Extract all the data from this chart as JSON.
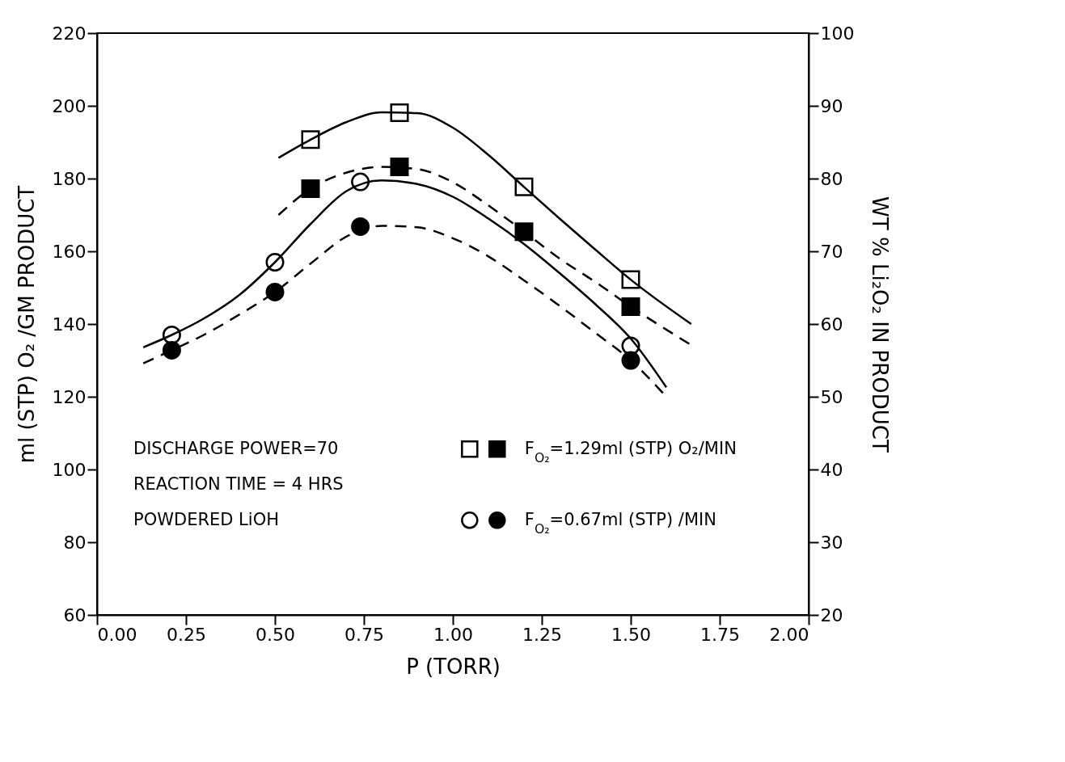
{
  "chart_data": {
    "type": "scatter",
    "xlabel": "P (TORR)",
    "ylabel": "ml (STP) O₂ /GM PRODUCT",
    "y2label": "WT % Li₂O₂ IN PRODUCT",
    "xlim": [
      0,
      2
    ],
    "xticks": [
      {
        "value": 0,
        "label": "0.00"
      },
      {
        "value": 0.25,
        "label": "0.25"
      },
      {
        "value": 0.5,
        "label": "0.50"
      },
      {
        "value": 0.75,
        "label": "0.75"
      },
      {
        "value": 1,
        "label": "1.00"
      },
      {
        "value": 1.25,
        "label": "1.25"
      },
      {
        "value": 1.5,
        "label": "1.50"
      },
      {
        "value": 1.75,
        "label": "1.75"
      },
      {
        "value": 2,
        "label": "2.00"
      }
    ],
    "ylim": [
      60,
      220
    ],
    "yticks": [
      60,
      80,
      100,
      120,
      140,
      160,
      180,
      200,
      220
    ],
    "y2lim": [
      20,
      100
    ],
    "y2ticks": [
      20,
      30,
      40,
      50,
      60,
      70,
      80,
      90,
      100
    ],
    "grid": false,
    "legend": "bottom right",
    "annotations": [
      "DISCHARGE POWER=70",
      "REACTION TIME = 4 HRS",
      "POWDERED LiOH"
    ],
    "series": [
      {
        "marker": "square",
        "color": "#000000",
        "x": [
          0.6,
          0.85,
          1.2,
          1.5
        ],
        "values": [
          190.7,
          198.1,
          177.7,
          152.2
        ]
      },
      {
        "name": "F$_{O₂}$=1.29ml (STP) O₂/MIN",
        "marker": "square",
        "color": "#000000",
        "axis": "y2",
        "x": [
          0.6,
          0.85,
          1.2,
          1.5
        ],
        "values": [
          78.6,
          81.6,
          72.7,
          62.4
        ]
      },
      {
        "marker": "circle",
        "color": "#000000",
        "x": [
          0.21,
          0.5,
          0.74,
          1.5
        ],
        "values": [
          137,
          157,
          179.1,
          134
        ]
      },
      {
        "name": "F$_{O₂}$=0.67ml (STP) /MIN",
        "marker": "circle",
        "color": "#000000",
        "axis": "y2",
        "x": [
          0.21,
          0.5,
          0.74,
          1.5
        ],
        "values": [
          56.4,
          64.4,
          73.4,
          55
        ]
      },
      {
        "type": "line",
        "marker": "none",
        "line_style": "solid",
        "color": "#000000",
        "x": [
          0.51,
          0.6,
          0.7,
          0.8,
          0.9,
          1.0,
          1.1,
          1.2,
          1.3,
          1.4,
          1.5,
          1.67
        ],
        "values": [
          185.7,
          190.7,
          195.5,
          198.2,
          198,
          194,
          186.5,
          177.7,
          169,
          160.5,
          152.2,
          140
        ]
      },
      {
        "type": "line",
        "marker": "none",
        "line_style": "dashed",
        "color": "#000000",
        "axis": "y2",
        "x": [
          0.51,
          0.6,
          0.7,
          0.8,
          0.9,
          1.0,
          1.1,
          1.2,
          1.3,
          1.4,
          1.5,
          1.67
        ],
        "values": [
          75,
          78.6,
          80.8,
          81.6,
          81.3,
          79.5,
          76.3,
          72.7,
          69,
          65.8,
          62.4,
          57.1
        ]
      },
      {
        "type": "line",
        "marker": "none",
        "line_style": "solid",
        "color": "#000000",
        "x": [
          0.13,
          0.21,
          0.3,
          0.4,
          0.5,
          0.6,
          0.7,
          0.8,
          0.9,
          1.0,
          1.1,
          1.2,
          1.3,
          1.4,
          1.5,
          1.6
        ],
        "values": [
          133.6,
          137,
          141.5,
          148,
          157,
          167.5,
          176.5,
          179.5,
          178.5,
          175,
          169,
          162,
          154,
          145.5,
          136,
          122.6
        ]
      },
      {
        "type": "line",
        "marker": "none",
        "line_style": "dashed",
        "color": "#000000",
        "axis": "y2",
        "x": [
          0.13,
          0.21,
          0.3,
          0.4,
          0.5,
          0.6,
          0.7,
          0.8,
          0.9,
          1.0,
          1.1,
          1.2,
          1.3,
          1.4,
          1.5,
          1.6
        ],
        "values": [
          54.6,
          56.4,
          58.5,
          61.3,
          64.4,
          68.3,
          72,
          73.5,
          73.3,
          71.8,
          69.3,
          66,
          62.5,
          58.8,
          55,
          50
        ]
      }
    ]
  }
}
